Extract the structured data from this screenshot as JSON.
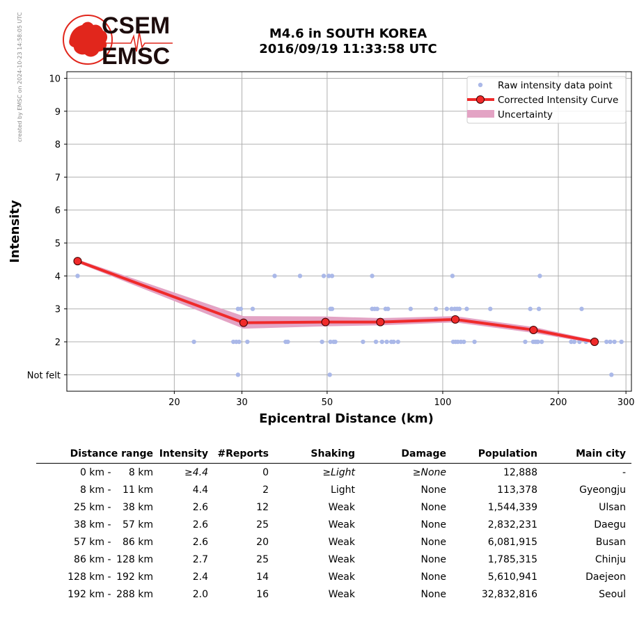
{
  "created_note": "created by EMSC on 2024-10-23 14:58:05 UTC",
  "logo": {
    "top": "CSEM",
    "bottom": "EMSC",
    "red": "#e1261c",
    "dark": "#1d0c0c"
  },
  "title_line1": "M4.6 in SOUTH KOREA",
  "title_line2": "2016/09/19 11:33:58 UTC",
  "chart_data": {
    "type": "scatter",
    "xlabel": "Epicentral Distance (km)",
    "ylabel": "Intensity",
    "x_scale": "log",
    "xlim": [
      10.5,
      310
    ],
    "ylim": [
      0.5,
      10.2
    ],
    "x_ticks": [
      20,
      30,
      50,
      100,
      200,
      300
    ],
    "y_ticks": [
      1,
      2,
      3,
      4,
      5,
      6,
      7,
      8,
      9,
      10
    ],
    "y_tick_labels": [
      "Not felt",
      "2",
      "3",
      "4",
      "5",
      "6",
      "7",
      "8",
      "9",
      "10"
    ],
    "grid": true,
    "legend_position": "top-right",
    "legend": [
      "Raw intensity data point",
      "Corrected Intensity Curve",
      "Uncertainty"
    ],
    "colors": {
      "raw": "#aab8e8",
      "curve": "#f02a2a",
      "band": "#e3a3c4",
      "marker_edge": "#3a0000"
    },
    "raw_points": [
      [
        11.2,
        4
      ],
      [
        22.5,
        2
      ],
      [
        28.5,
        2
      ],
      [
        29,
        2
      ],
      [
        29.3,
        1
      ],
      [
        29.3,
        3
      ],
      [
        29.5,
        2
      ],
      [
        29.8,
        3
      ],
      [
        31,
        2
      ],
      [
        32,
        3
      ],
      [
        36.5,
        4
      ],
      [
        39,
        2
      ],
      [
        39.5,
        2
      ],
      [
        42.5,
        4
      ],
      [
        48.5,
        2
      ],
      [
        49.0,
        4
      ],
      [
        50.5,
        4
      ],
      [
        50.8,
        1
      ],
      [
        51,
        3
      ],
      [
        51,
        2
      ],
      [
        51.5,
        4
      ],
      [
        51.5,
        3
      ],
      [
        52,
        2
      ],
      [
        52.5,
        2
      ],
      [
        62,
        2
      ],
      [
        65.5,
        4
      ],
      [
        65.5,
        3
      ],
      [
        66.5,
        3
      ],
      [
        67,
        2
      ],
      [
        67.5,
        3
      ],
      [
        69.5,
        2
      ],
      [
        71,
        3
      ],
      [
        71.5,
        2
      ],
      [
        72,
        3
      ],
      [
        73.5,
        2
      ],
      [
        74.5,
        2
      ],
      [
        76.5,
        2
      ],
      [
        82.5,
        3
      ],
      [
        96,
        3
      ],
      [
        102.5,
        3
      ],
      [
        105.5,
        3
      ],
      [
        106,
        4
      ],
      [
        106.5,
        2
      ],
      [
        107.5,
        3
      ],
      [
        108,
        2
      ],
      [
        109,
        3
      ],
      [
        109.5,
        2
      ],
      [
        110.5,
        3
      ],
      [
        111.5,
        2
      ],
      [
        113.5,
        2
      ],
      [
        115.5,
        3
      ],
      [
        121,
        2
      ],
      [
        133,
        3
      ],
      [
        164,
        2
      ],
      [
        169,
        3
      ],
      [
        172,
        2
      ],
      [
        174,
        2
      ],
      [
        175,
        2
      ],
      [
        176.5,
        2
      ],
      [
        177,
        2
      ],
      [
        178,
        3
      ],
      [
        179,
        4
      ],
      [
        181,
        2
      ],
      [
        216,
        2
      ],
      [
        220,
        2
      ],
      [
        227,
        2
      ],
      [
        230,
        3
      ],
      [
        236,
        2
      ],
      [
        267,
        2
      ],
      [
        273,
        2
      ],
      [
        275,
        1
      ],
      [
        280,
        2
      ],
      [
        292,
        2
      ]
    ],
    "curve": [
      {
        "x": 11.2,
        "y": 4.45
      },
      {
        "x": 30.3,
        "y": 2.58
      },
      {
        "x": 49.5,
        "y": 2.6
      },
      {
        "x": 68.8,
        "y": 2.6
      },
      {
        "x": 107.8,
        "y": 2.68
      },
      {
        "x": 172.3,
        "y": 2.36
      },
      {
        "x": 248.5,
        "y": 2.0
      }
    ],
    "band_upper": [
      4.5,
      2.78,
      2.77,
      2.72,
      2.78,
      2.45,
      2.05
    ],
    "band_lower": [
      4.4,
      2.4,
      2.47,
      2.5,
      2.59,
      2.27,
      1.95
    ]
  },
  "table": {
    "headers": [
      "Distance range",
      "Intensity",
      "#Reports",
      "Shaking",
      "Damage",
      "Population",
      "Main city"
    ],
    "rows": [
      {
        "d1": "0 km",
        "d2": "8 km",
        "intensity": "≥4.4",
        "reports": "0",
        "shaking": "≥Light",
        "damage": "≥None",
        "population": "12,888",
        "city": "-",
        "italic": true
      },
      {
        "d1": "8 km",
        "d2": "11 km",
        "intensity": "4.4",
        "reports": "2",
        "shaking": "Light",
        "damage": "None",
        "population": "113,378",
        "city": "Gyeongju"
      },
      {
        "d1": "25 km",
        "d2": "38 km",
        "intensity": "2.6",
        "reports": "12",
        "shaking": "Weak",
        "damage": "None",
        "population": "1,544,339",
        "city": "Ulsan"
      },
      {
        "d1": "38 km",
        "d2": "57 km",
        "intensity": "2.6",
        "reports": "25",
        "shaking": "Weak",
        "damage": "None",
        "population": "2,832,231",
        "city": "Daegu"
      },
      {
        "d1": "57 km",
        "d2": "86 km",
        "intensity": "2.6",
        "reports": "20",
        "shaking": "Weak",
        "damage": "None",
        "population": "6,081,915",
        "city": "Busan"
      },
      {
        "d1": "86 km",
        "d2": "128 km",
        "intensity": "2.7",
        "reports": "25",
        "shaking": "Weak",
        "damage": "None",
        "population": "1,785,315",
        "city": "Chinju"
      },
      {
        "d1": "128 km",
        "d2": "192 km",
        "intensity": "2.4",
        "reports": "14",
        "shaking": "Weak",
        "damage": "None",
        "population": "5,610,941",
        "city": "Daejeon"
      },
      {
        "d1": "192 km",
        "d2": "288 km",
        "intensity": "2.0",
        "reports": "16",
        "shaking": "Weak",
        "damage": "None",
        "population": "32,832,816",
        "city": "Seoul"
      }
    ]
  }
}
